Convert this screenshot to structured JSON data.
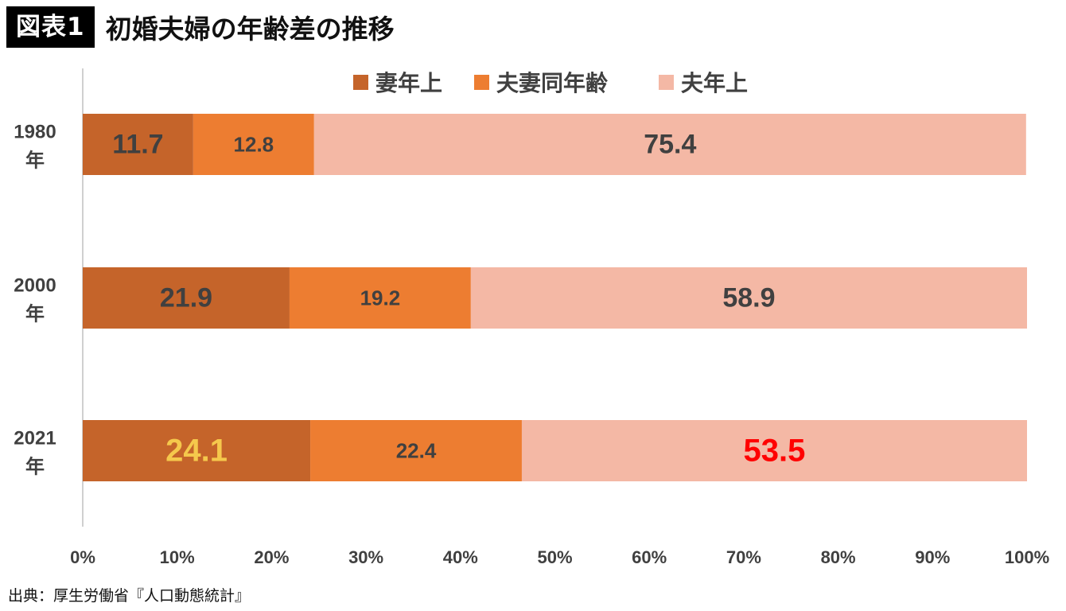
{
  "header": {
    "badge": "図表1",
    "title": "初婚夫婦の年齢差の推移"
  },
  "source": "出典：厚生労働省『人口動態統計』",
  "chart_data": {
    "type": "bar",
    "orientation": "horizontal",
    "stacked": true,
    "percent": true,
    "categories": [
      "1980\n年",
      "2000\n年",
      "2021\n年"
    ],
    "series": [
      {
        "name": "妻年上",
        "color": "#c5642a",
        "values": [
          11.7,
          21.9,
          24.1
        ],
        "label_colors": [
          "#404040",
          "#404040",
          "#f5c84c"
        ]
      },
      {
        "name": "夫妻同年齢",
        "color": "#ed7d31",
        "values": [
          12.8,
          19.2,
          22.4
        ],
        "label_colors": [
          "#404040",
          "#404040",
          "#404040"
        ]
      },
      {
        "name": "夫年上",
        "color": "#f4b8a5",
        "values": [
          75.4,
          58.9,
          53.5
        ],
        "label_colors": [
          "#404040",
          "#404040",
          "#ff0000"
        ]
      }
    ],
    "xlim": [
      0,
      100
    ],
    "xticks": [
      "0%",
      "10%",
      "20%",
      "30%",
      "40%",
      "50%",
      "60%",
      "70%",
      "80%",
      "90%",
      "100%"
    ],
    "legend_position": "top",
    "grid": false
  }
}
